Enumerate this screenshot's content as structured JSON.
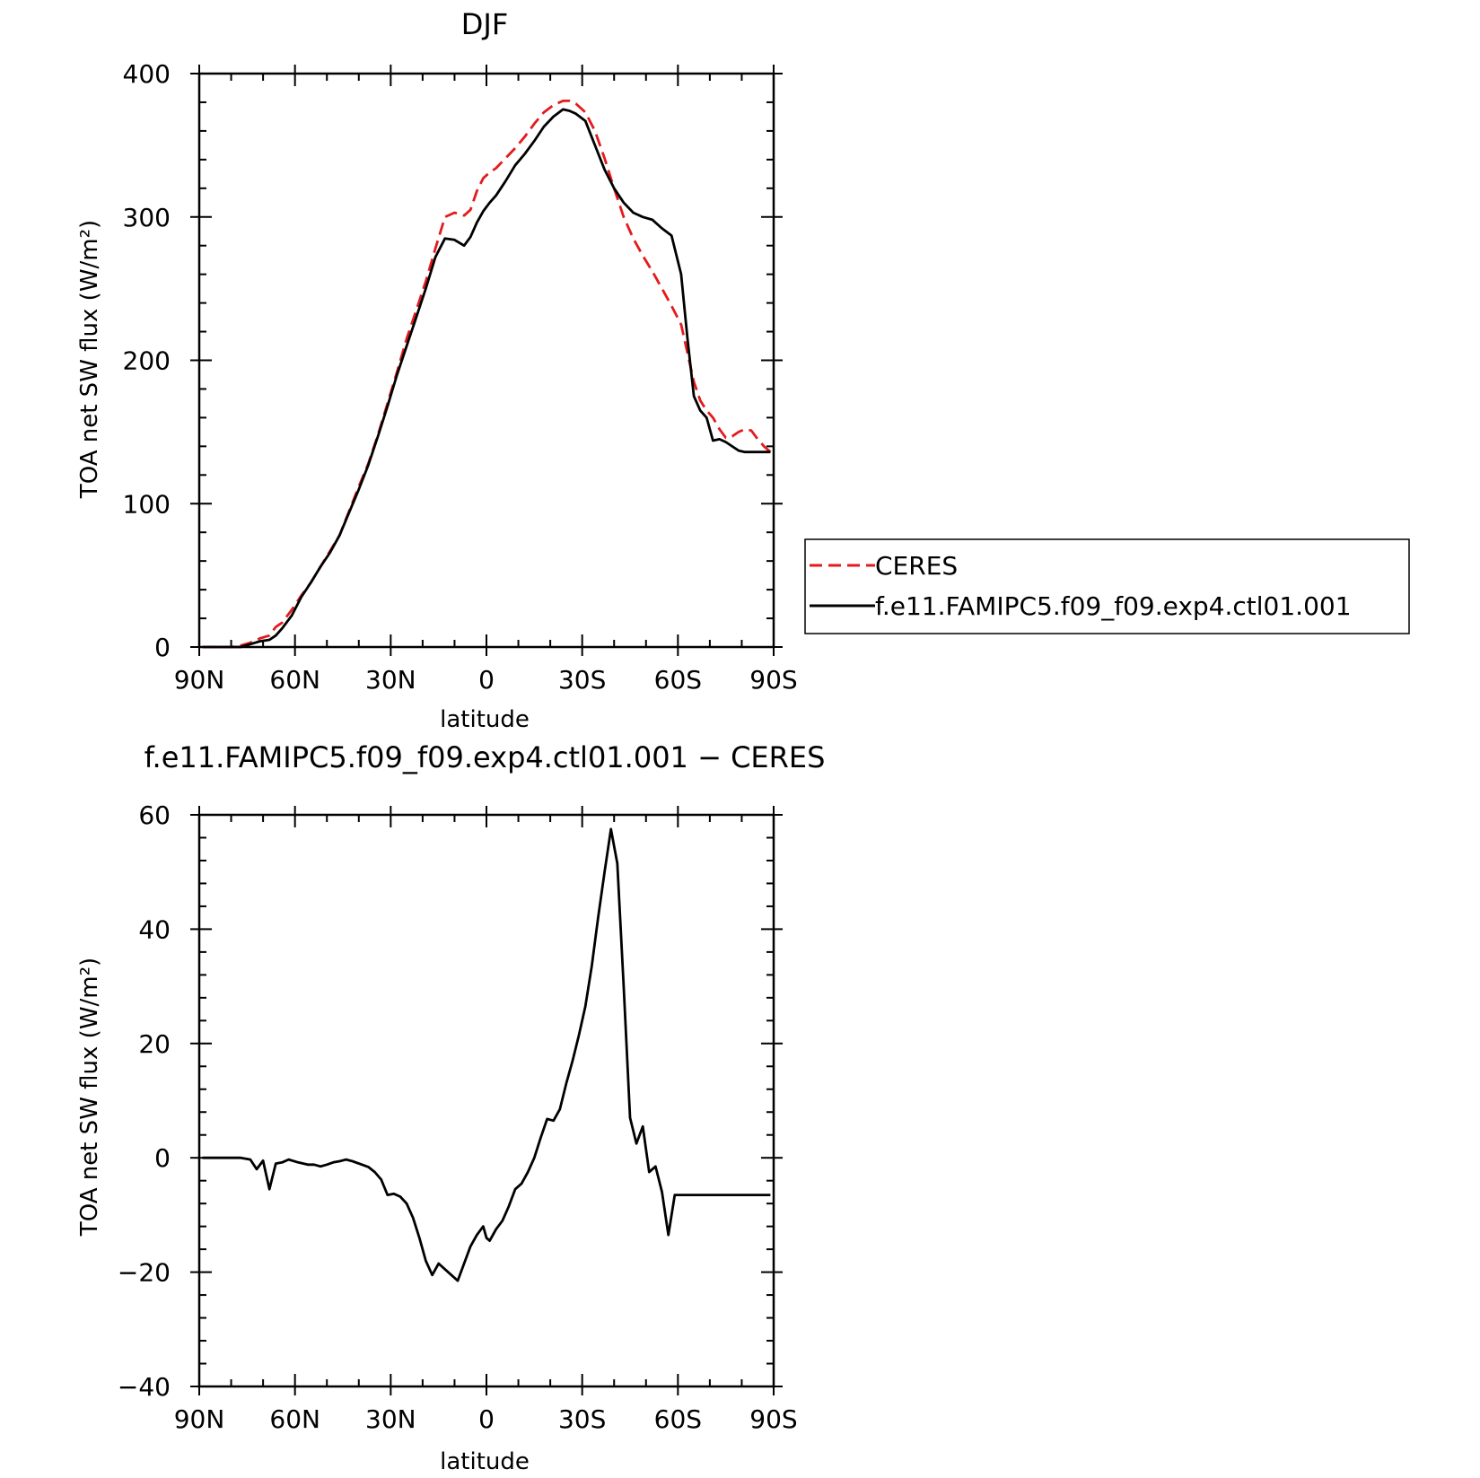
{
  "colors": {
    "ceres": "#e41a1c",
    "model": "#000000"
  },
  "legend": {
    "entries": [
      {
        "label": "CERES",
        "series": "CERES",
        "color": "#e41a1c",
        "dash": true
      },
      {
        "label": "f.e11.FAMIPC5.f09_f09.exp4.ctl01.001",
        "series": "f.e11.FAMIPC5.f09_f09.exp4.ctl01.001",
        "color": "#000000",
        "dash": false
      }
    ]
  },
  "chart_data": [
    {
      "type": "line",
      "title": "DJF",
      "xlabel": "latitude",
      "ylabel": "TOA net SW flux (W/m²)",
      "xlim": [
        90,
        -90
      ],
      "ylim": [
        0,
        400
      ],
      "xticks": [
        90,
        60,
        30,
        0,
        -30,
        -60,
        -90
      ],
      "xtick_labels": [
        "90N",
        "60N",
        "30N",
        "0",
        "30S",
        "60S",
        "90S"
      ],
      "yticks": [
        0,
        100,
        200,
        300,
        400
      ],
      "ytick_labels": [
        "0",
        "100",
        "200",
        "300",
        "400"
      ],
      "legend_position": "right",
      "series": [
        {
          "name": "CERES",
          "color": "#e41a1c",
          "dash": true,
          "x": [
            89,
            86,
            83,
            80,
            77,
            74,
            71,
            68,
            66,
            64,
            61,
            58,
            55,
            52,
            49,
            46,
            43,
            40,
            37,
            34,
            31,
            28,
            25,
            22,
            19,
            16,
            13,
            10,
            7,
            5,
            3,
            1,
            -1,
            -3,
            -6,
            -9,
            -12,
            -15,
            -18,
            -21,
            -24,
            -26,
            -28,
            -31,
            -34,
            -37,
            -40,
            -43,
            -46,
            -49,
            -52,
            -55,
            -58,
            -61,
            -63,
            -65,
            -67,
            -69,
            -71,
            -73,
            -75,
            -77,
            -79,
            -81,
            -83,
            -85,
            -87,
            -89
          ],
          "y": [
            0,
            0,
            0,
            0,
            1,
            3,
            6,
            8,
            14,
            17,
            26,
            36,
            45,
            56,
            67,
            78,
            95,
            112,
            128,
            148,
            170,
            192,
            215,
            235,
            255,
            278,
            300,
            303,
            301,
            305,
            318,
            327,
            331,
            334,
            341,
            348,
            356,
            365,
            373,
            378,
            381,
            381,
            379,
            373,
            360,
            341,
            320,
            300,
            285,
            273,
            262,
            250,
            238,
            225,
            205,
            185,
            172,
            165,
            160,
            152,
            146,
            147,
            150,
            152,
            151,
            145,
            140,
            136
          ]
        },
        {
          "name": "f.e11.FAMIPC5.f09_f09.exp4.ctl01.001",
          "color": "#000000",
          "dash": false,
          "x": [
            89,
            86,
            83,
            80,
            77,
            74,
            71,
            68,
            66,
            64,
            61,
            58,
            55,
            52,
            49,
            46,
            43,
            40,
            37,
            34,
            31,
            28,
            25,
            22,
            19,
            16,
            13,
            10,
            7,
            5,
            3,
            1,
            -1,
            -3,
            -6,
            -9,
            -12,
            -15,
            -18,
            -21,
            -24,
            -26,
            -28,
            -31,
            -34,
            -37,
            -40,
            -43,
            -46,
            -49,
            -52,
            -55,
            -58,
            -61,
            -63,
            -65,
            -67,
            -69,
            -71,
            -73,
            -75,
            -77,
            -79,
            -81,
            -83,
            -85,
            -87,
            -89
          ],
          "y": [
            0,
            0,
            0,
            0,
            0,
            2,
            4,
            5,
            8,
            13,
            22,
            35,
            45,
            56,
            66,
            78,
            94,
            110,
            127,
            147,
            168,
            190,
            210,
            230,
            250,
            272,
            285,
            284,
            280,
            286,
            296,
            304,
            310,
            315,
            325,
            336,
            344,
            353,
            363,
            370,
            375,
            374,
            372,
            367,
            350,
            333,
            320,
            310,
            303,
            300,
            298,
            292,
            287,
            260,
            215,
            175,
            165,
            160,
            144,
            145,
            143,
            140,
            137,
            136,
            136,
            136,
            136,
            136
          ]
        }
      ]
    },
    {
      "type": "line",
      "title": "f.e11.FAMIPC5.f09_f09.exp4.ctl01.001 − CERES",
      "xlabel": "latitude",
      "ylabel": "TOA net SW flux (W/m²)",
      "xlim": [
        90,
        -90
      ],
      "ylim": [
        -40,
        60
      ],
      "xticks": [
        90,
        60,
        30,
        0,
        -30,
        -60,
        -90
      ],
      "xtick_labels": [
        "90N",
        "60N",
        "30N",
        "0",
        "30S",
        "60S",
        "90S"
      ],
      "yticks": [
        -40,
        -20,
        0,
        20,
        40,
        60
      ],
      "ytick_labels": [
        "−40",
        "−20",
        "0",
        "20",
        "40",
        "60"
      ],
      "series": [
        {
          "color": "#000000",
          "dash": false,
          "x": [
            89,
            86,
            83,
            80,
            77,
            74,
            72,
            70,
            68,
            66,
            64,
            62,
            59,
            56,
            54,
            52,
            50,
            48,
            46,
            44,
            42,
            39,
            37,
            35,
            33,
            31,
            29,
            27,
            25,
            23,
            21,
            19,
            17,
            15,
            13,
            11,
            9,
            7,
            5,
            3,
            1,
            0,
            -1,
            -3,
            -5,
            -7,
            -9,
            -11,
            -13,
            -15,
            -17,
            -19,
            -21,
            -23,
            -25,
            -27,
            -29,
            -31,
            -33,
            -35,
            -37,
            -39,
            -41,
            -43,
            -45,
            -47,
            -49,
            -51,
            -53,
            -55,
            -57,
            -59,
            -61,
            -63,
            -65,
            -67,
            -69,
            -71,
            -73,
            -75,
            -77,
            -79,
            -81,
            -83,
            -85,
            -87,
            -89
          ],
          "y": [
            0,
            0,
            0,
            0,
            0,
            -0.3,
            -2,
            -0.5,
            -5.5,
            -1,
            -0.8,
            -0.3,
            -0.8,
            -1.2,
            -1.2,
            -1.5,
            -1.2,
            -0.8,
            -0.6,
            -0.3,
            -0.6,
            -1.2,
            -1.6,
            -2.5,
            -3.8,
            -6.5,
            -6.3,
            -6.8,
            -8,
            -10.5,
            -14,
            -18,
            -20.5,
            -18.5,
            -19.5,
            -20.5,
            -21.5,
            -18.5,
            -15.5,
            -13.5,
            -12,
            -14,
            -14.5,
            -12.5,
            -11,
            -8.5,
            -5.5,
            -4.5,
            -2.5,
            0,
            3.5,
            6.8,
            6.5,
            8.5,
            13,
            17,
            21.5,
            26.5,
            33.5,
            42,
            50,
            57.5,
            51.5,
            30,
            7,
            2.5,
            5.5,
            -2.5,
            -1.5,
            -6,
            -13.5,
            -6.5,
            -6.5,
            -6.5,
            -6.5,
            -6.5,
            -6.5,
            -6.5,
            -6.5,
            -6.5,
            -6.5,
            -6.5,
            -6.5,
            -6.5,
            -6.5,
            -6.5,
            -6.5
          ]
        }
      ]
    }
  ]
}
